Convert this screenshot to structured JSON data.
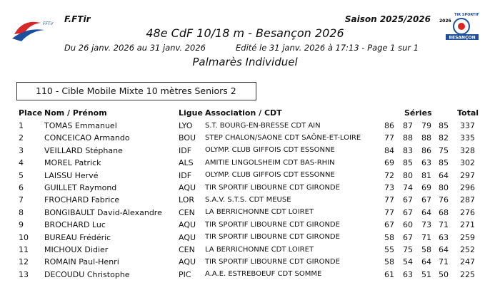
{
  "header": {
    "org": "F.FTir",
    "season": "Saison 2025/2026",
    "title": "48e CdF 10/18 m - Besançon 2026",
    "dates": "Du 26 janv. 2026 au 31 janv. 2026",
    "edited": "Edité le 31 janv. 2026 à 17:13 - Page 1 sur 1",
    "subtitle": "Palmarès Individuel",
    "logo_left": "FFTir",
    "logo_right_year": "2026",
    "logo_right_top": "TIR SPORTIF",
    "logo_right_city": "BESANÇON"
  },
  "category": "110 - Cible Mobile Mixte 10 mètres Seniors 2",
  "table": {
    "columns": [
      "Place",
      "Nom / Prénom",
      "Ligue",
      "Association / CDT",
      "Séries",
      "Total"
    ],
    "rows": [
      [
        1,
        "TOMAS Emmanuel",
        "LYO",
        "S.T. BOURG-EN-BRESSE CDT AIN",
        86,
        87,
        79,
        85,
        337
      ],
      [
        2,
        "CONCEICAO Armando",
        "BOU",
        "STEP CHALON/SAONE CDT SAÔNE-ET-LOIRE",
        77,
        88,
        88,
        82,
        335
      ],
      [
        3,
        "VEILLARD Stéphane",
        "IDF",
        "OLYMP. CLUB GIFFOIS CDT ESSONNE",
        84,
        83,
        86,
        75,
        328
      ],
      [
        4,
        "MOREL Patrick",
        "ALS",
        "AMITIE LINGOLSHEIM CDT BAS-RHIN",
        69,
        85,
        63,
        85,
        302
      ],
      [
        5,
        "LAISSU Hervé",
        "IDF",
        "OLYMP. CLUB GIFFOIS CDT ESSONNE",
        72,
        80,
        81,
        64,
        297
      ],
      [
        6,
        "GUILLET Raymond",
        "AQU",
        "TIR SPORTIF LIBOURNE CDT GIRONDE",
        73,
        74,
        69,
        80,
        296
      ],
      [
        7,
        "FROCHARD Fabrice",
        "LOR",
        "S.A.V. S.T.S. CDT MEUSE",
        77,
        67,
        67,
        76,
        287
      ],
      [
        8,
        "BONGIBAULT David-Alexandre",
        "CEN",
        "LA BERRICHONNE CDT LOIRET",
        77,
        67,
        64,
        68,
        276
      ],
      [
        9,
        "BROCHARD Luc",
        "AQU",
        "TIR SPORTIF LIBOURNE CDT GIRONDE",
        67,
        60,
        73,
        71,
        271
      ],
      [
        10,
        "BUREAU Frédéric",
        "AQU",
        "TIR SPORTIF LIBOURNE CDT GIRONDE",
        58,
        67,
        71,
        63,
        259
      ],
      [
        11,
        "MICHOUX Didier",
        "CEN",
        "LA BERRICHONNE CDT LOIRET",
        55,
        75,
        58,
        64,
        252
      ],
      [
        12,
        "ROMAIN Paul-Henri",
        "AQU",
        "TIR SPORTIF LIBOURNE CDT GIRONDE",
        58,
        54,
        64,
        71,
        247
      ],
      [
        13,
        "DECOUDU Christophe",
        "PIC",
        "A.A.E. ESTREBOEUF CDT SOMME",
        61,
        63,
        51,
        50,
        225
      ]
    ]
  }
}
